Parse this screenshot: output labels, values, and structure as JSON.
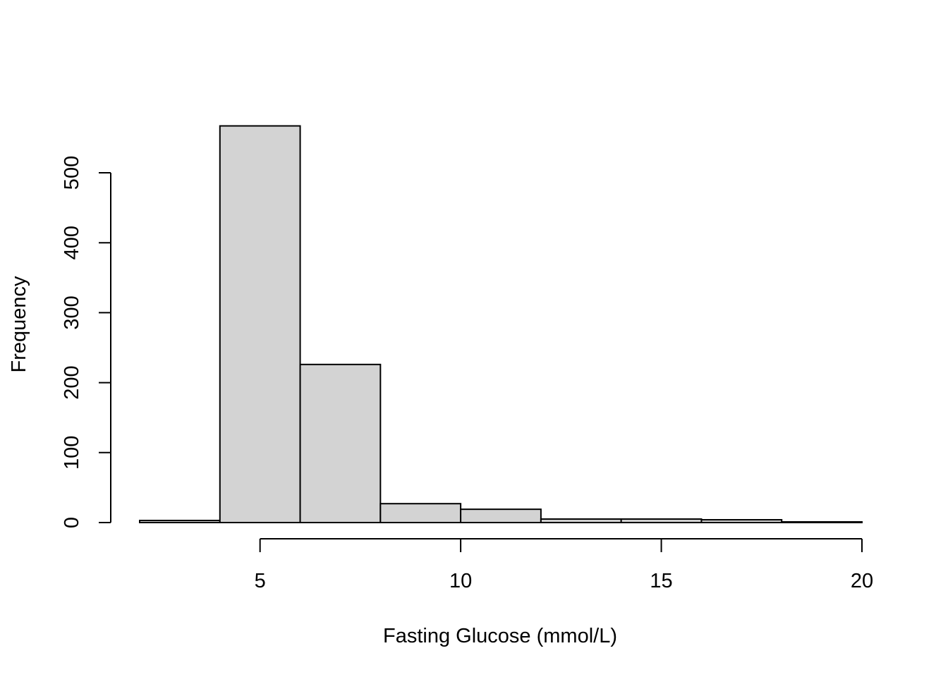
{
  "chart_data": {
    "type": "bar",
    "subtype": "histogram",
    "title": "",
    "xlabel": "Fasting Glucose (mmol/L)",
    "ylabel": "Frequency",
    "bins": [
      {
        "start": 2,
        "end": 4,
        "count": 3
      },
      {
        "start": 4,
        "end": 6,
        "count": 567
      },
      {
        "start": 6,
        "end": 8,
        "count": 226
      },
      {
        "start": 8,
        "end": 10,
        "count": 27
      },
      {
        "start": 10,
        "end": 12,
        "count": 19
      },
      {
        "start": 12,
        "end": 14,
        "count": 5
      },
      {
        "start": 14,
        "end": 16,
        "count": 5
      },
      {
        "start": 16,
        "end": 18,
        "count": 4
      },
      {
        "start": 18,
        "end": 20,
        "count": 1
      }
    ],
    "xlim": [
      2,
      20
    ],
    "ylim": [
      0,
      567
    ],
    "x_ticks": [
      5,
      10,
      15,
      20
    ],
    "y_ticks": [
      0,
      100,
      200,
      300,
      400,
      500
    ],
    "bar_color": "#d3d3d3",
    "border_color": "#000000",
    "grid": false,
    "legend": "none"
  }
}
